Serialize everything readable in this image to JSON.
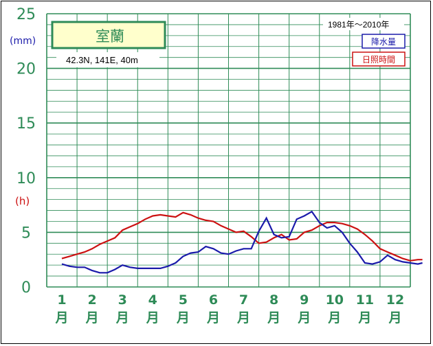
{
  "chart_data": {
    "type": "line",
    "station": "室蘭",
    "coordinates": "42.3N,  141E,  40m",
    "period": "1981年〜2010年",
    "y_units": {
      "precip": "(mm)",
      "sunshine": "(h)"
    },
    "yticks": [
      {
        "value": 0,
        "label": "0"
      },
      {
        "value": 5,
        "label": "5"
      },
      {
        "value": 10,
        "label": "10"
      },
      {
        "value": 15,
        "label": "15"
      },
      {
        "value": 20,
        "label": "20"
      },
      {
        "value": 25,
        "label": "25"
      }
    ],
    "ylim": [
      0,
      25
    ],
    "months": [
      {
        "num": "1",
        "kanji": "月"
      },
      {
        "num": "2",
        "kanji": "月"
      },
      {
        "num": "3",
        "kanji": "月"
      },
      {
        "num": "4",
        "kanji": "月"
      },
      {
        "num": "5",
        "kanji": "月"
      },
      {
        "num": "6",
        "kanji": "月"
      },
      {
        "num": "7",
        "kanji": "月"
      },
      {
        "num": "8",
        "kanji": "月"
      },
      {
        "num": "9",
        "kanji": "月"
      },
      {
        "num": "10",
        "kanji": "月"
      },
      {
        "num": "11",
        "kanji": "月"
      },
      {
        "num": "12",
        "kanji": "月"
      }
    ],
    "grid": true,
    "legend": {
      "precip": "降水量",
      "sunshine": "日照時間"
    },
    "colors": {
      "precip": "#1a1aaa",
      "sunshine": "#cc1111",
      "grid": "#2e8b57"
    },
    "series": [
      {
        "name": "降水量",
        "x": [
          1.0,
          1.25,
          1.5,
          1.75,
          2.0,
          2.25,
          2.5,
          2.75,
          3.0,
          3.25,
          3.5,
          3.75,
          4.0,
          4.25,
          4.5,
          4.75,
          5.0,
          5.25,
          5.5,
          5.75,
          6.0,
          6.25,
          6.5,
          6.75,
          7.0,
          7.25,
          7.5,
          7.75,
          8.0,
          8.25,
          8.5,
          8.75,
          9.0,
          9.25,
          9.5,
          9.75,
          10.0,
          10.25,
          10.5,
          10.75,
          11.0,
          11.25,
          11.5,
          11.75,
          12.0,
          12.25,
          12.5,
          12.75,
          12.9
        ],
        "values": [
          2.1,
          1.9,
          1.8,
          1.8,
          1.5,
          1.3,
          1.3,
          1.6,
          2.0,
          1.8,
          1.7,
          1.7,
          1.7,
          1.7,
          1.9,
          2.2,
          2.8,
          3.1,
          3.2,
          3.7,
          3.5,
          3.1,
          3.0,
          3.3,
          3.5,
          3.5,
          5.1,
          6.3,
          4.8,
          4.5,
          4.6,
          6.2,
          6.5,
          6.9,
          5.9,
          5.4,
          5.6,
          5.0,
          4.0,
          3.2,
          2.2,
          2.1,
          2.3,
          2.9,
          2.5,
          2.3,
          2.2,
          2.1,
          2.2
        ]
      },
      {
        "name": "日照時間",
        "x": [
          1.0,
          1.25,
          1.5,
          1.75,
          2.0,
          2.25,
          2.5,
          2.75,
          3.0,
          3.25,
          3.5,
          3.75,
          4.0,
          4.25,
          4.5,
          4.75,
          5.0,
          5.25,
          5.5,
          5.75,
          6.0,
          6.25,
          6.5,
          6.75,
          7.0,
          7.25,
          7.5,
          7.75,
          8.0,
          8.25,
          8.5,
          8.75,
          9.0,
          9.25,
          9.5,
          9.75,
          10.0,
          10.25,
          10.5,
          10.75,
          11.0,
          11.25,
          11.5,
          11.75,
          12.0,
          12.25,
          12.5,
          12.75,
          12.9
        ],
        "values": [
          2.6,
          2.8,
          3.0,
          3.2,
          3.5,
          3.9,
          4.2,
          4.5,
          5.2,
          5.5,
          5.8,
          6.2,
          6.5,
          6.6,
          6.5,
          6.4,
          6.8,
          6.6,
          6.3,
          6.1,
          6.0,
          5.6,
          5.3,
          5.0,
          5.1,
          4.6,
          4.0,
          4.1,
          4.5,
          4.8,
          4.3,
          4.4,
          5.0,
          5.2,
          5.6,
          5.9,
          5.9,
          5.8,
          5.6,
          5.3,
          4.8,
          4.2,
          3.5,
          3.2,
          2.9,
          2.6,
          2.4,
          2.5,
          2.5
        ]
      }
    ]
  }
}
